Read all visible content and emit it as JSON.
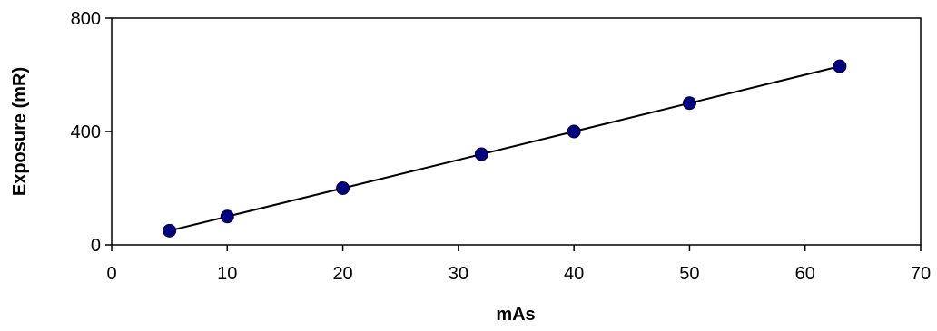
{
  "chart_data": {
    "type": "scatter",
    "title": "",
    "xlabel": "mAs",
    "ylabel": "Exposure (mR)",
    "xlim": [
      0,
      70
    ],
    "ylim": [
      0,
      800
    ],
    "x_ticks": [
      0,
      10,
      20,
      30,
      40,
      50,
      60,
      70
    ],
    "y_ticks": [
      0,
      400,
      800
    ],
    "grid": false,
    "legend": "none",
    "series": [
      {
        "x": [
          5,
          10,
          20,
          32,
          40,
          50,
          63
        ],
        "y": [
          50,
          100,
          200,
          320,
          400,
          500,
          630
        ],
        "marker_color": "#000080",
        "line_color": "#000000",
        "trendline": true
      }
    ]
  }
}
